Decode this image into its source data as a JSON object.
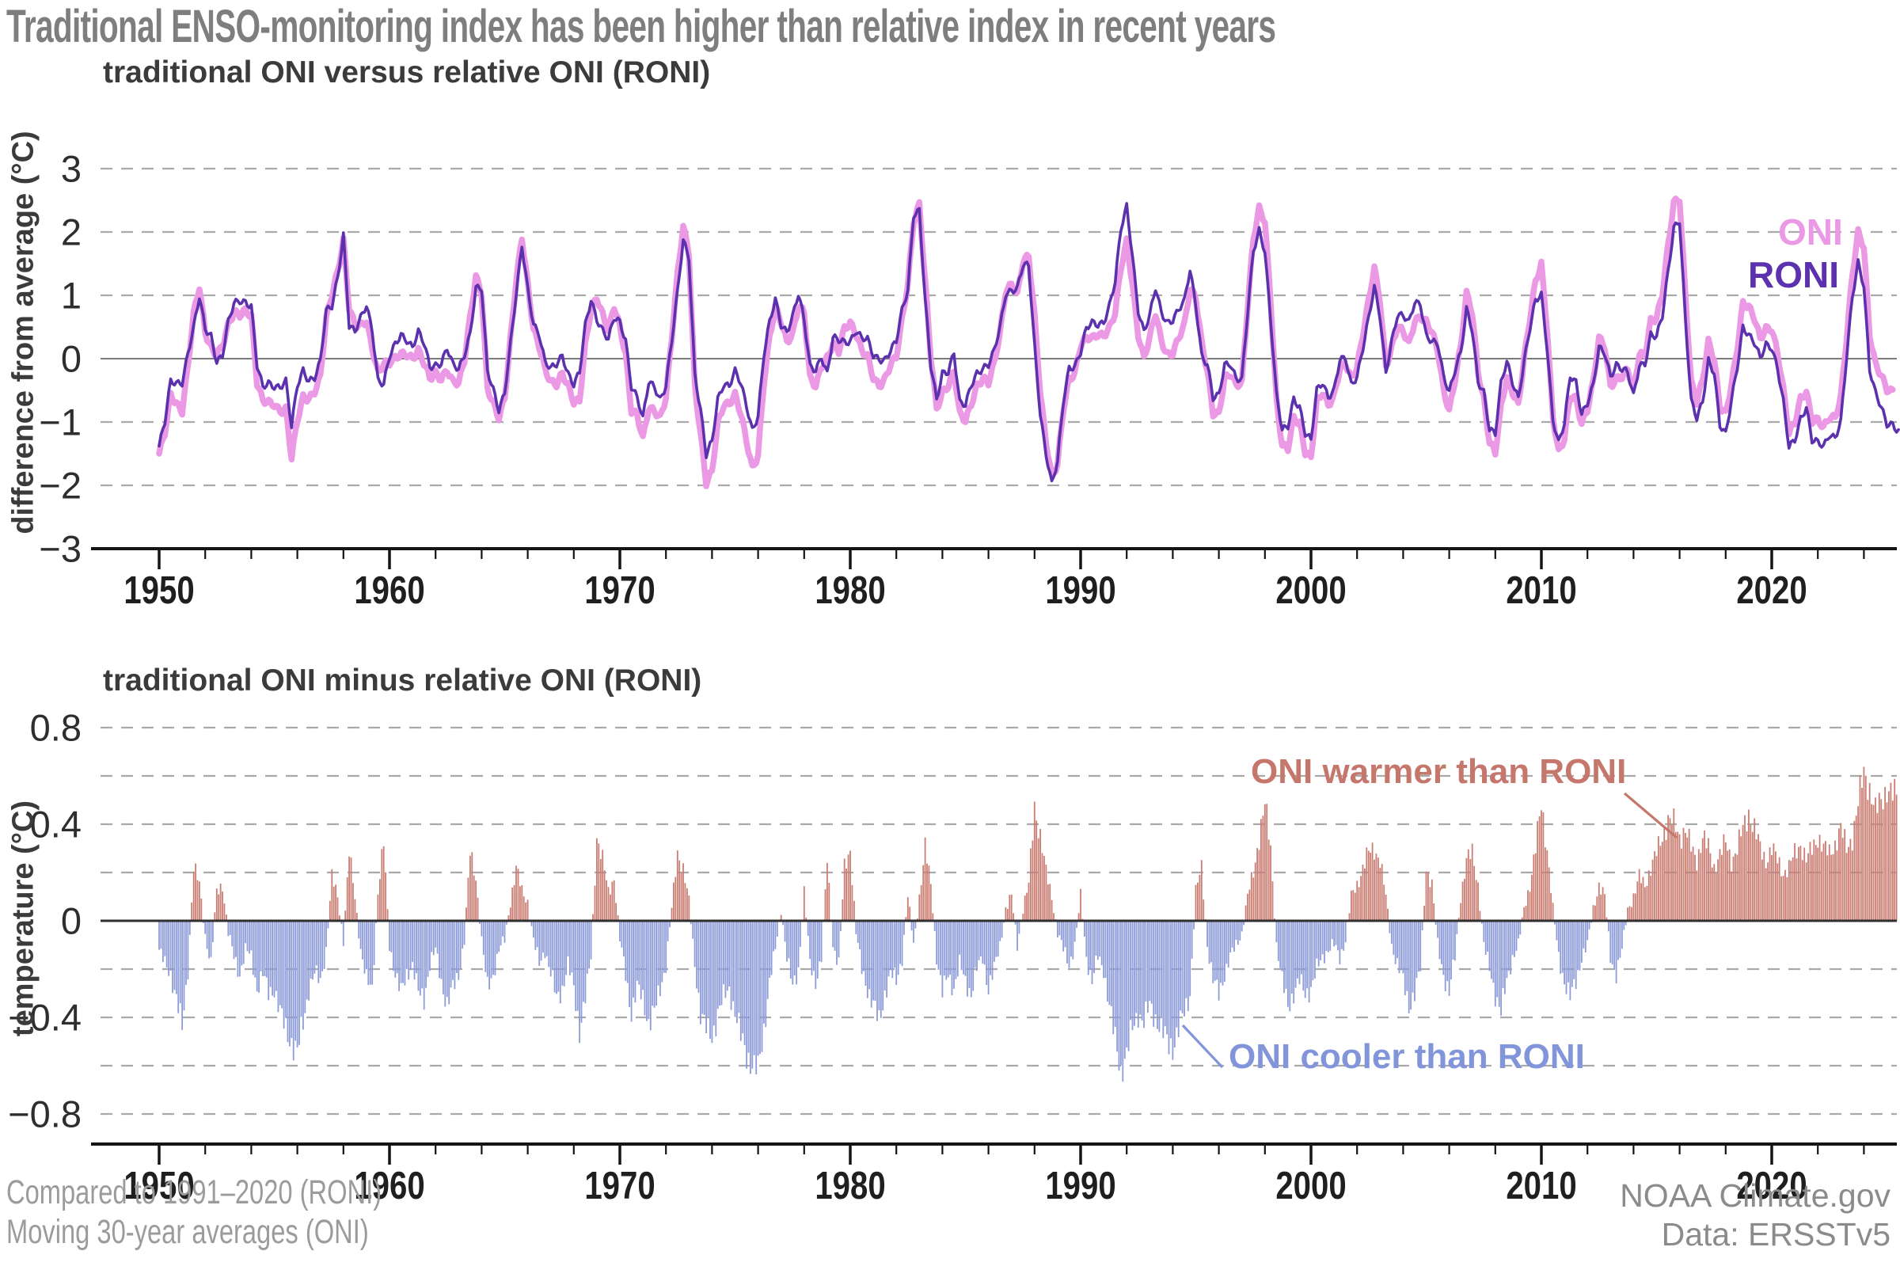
{
  "title": "Traditional ENSO-monitoring index has been higher than relative index in recent years",
  "footer": {
    "left_line1": "Compared to 1991–2020 (RONI)",
    "left_line2": "Moving 30-year averages (ONI)",
    "right_line1": "NOAA Climate.gov",
    "right_line2": "Data: ERSSTv5"
  },
  "colors": {
    "oni_pink": "#ec99e5",
    "roni_purple": "#5c31ad",
    "bar_warm": "#ca7e73",
    "bar_cool": "#8d9cd9",
    "annotation_warm": "#c5776c",
    "annotation_cool": "#8295da",
    "grid": "#a9a9a9",
    "zero_top": "#7a7a7a",
    "zero_bottom": "#2f2f2f",
    "axis": "#141414",
    "tick_label": "#1f1f1f",
    "y_label": "#2e2e2e",
    "title_gray": "#7e7e7e",
    "subtitle_dark": "#3b3b3b"
  },
  "chart_data": [
    {
      "type": "line",
      "title": "traditional ONI versus relative ONI (RONI)",
      "ylabel": "difference from average (°C)",
      "xlabel": "",
      "ylim": [
        -3,
        3
      ],
      "xlim": [
        1950,
        2025.5
      ],
      "grid": "dashed horizontal at integer values, solid line at 0",
      "legend_position": "right, stacked labels on plot",
      "x_start": 1950,
      "x_step_years": 0.25,
      "x_ticks": [
        1950,
        1960,
        1970,
        1980,
        1990,
        2000,
        2010,
        2020
      ],
      "y_tick_labels": [
        "3",
        "2",
        "1",
        "0",
        "−1",
        "−2",
        "−3"
      ],
      "y_tick_values": [
        3,
        2,
        1,
        0,
        -1,
        -2,
        -3
      ],
      "series": [
        {
          "name": "ONI",
          "color": "#ec99e5",
          "note": "quarterly decimal-year samples starting 1950.0, line ends mid-2025",
          "values": [
            -1.5,
            -1.2,
            -0.6,
            -0.7,
            -0.8,
            -0.1,
            0.7,
            1.1,
            0.4,
            0.2,
            0.1,
            0.2,
            0.5,
            0.7,
            0.7,
            0.8,
            0.7,
            -0.4,
            -0.7,
            -0.7,
            -0.7,
            -0.8,
            -0.8,
            -1.6,
            -1.0,
            -0.6,
            -0.6,
            -0.5,
            -0.3,
            0.6,
            1.0,
            1.4,
            1.9,
            0.8,
            0.5,
            0.5,
            0.6,
            0.2,
            -0.2,
            -0.1,
            -0.1,
            0.0,
            0.1,
            0.1,
            0.0,
            0.1,
            -0.1,
            -0.3,
            -0.2,
            -0.3,
            -0.2,
            -0.4,
            -0.4,
            0.0,
            0.7,
            1.3,
            1.0,
            -0.5,
            -0.7,
            -0.9,
            -0.6,
            0.3,
            1.2,
            1.9,
            1.2,
            0.5,
            0.2,
            -0.2,
            -0.4,
            -0.4,
            -0.2,
            -0.4,
            -0.7,
            -0.7,
            0.2,
            0.8,
            1.0,
            0.7,
            0.4,
            0.8,
            0.5,
            0.1,
            -0.8,
            -0.9,
            -1.3,
            -0.8,
            -0.8,
            -0.9,
            -0.6,
            0.3,
            1.3,
            2.1,
            1.7,
            -0.4,
            -1.2,
            -2.0,
            -1.8,
            -1.0,
            -0.7,
            -0.7,
            -0.6,
            -0.9,
            -1.3,
            -1.7,
            -1.5,
            -0.4,
            0.3,
            0.8,
            0.6,
            0.3,
            0.4,
            0.8,
            0.7,
            -0.3,
            -0.4,
            -0.1,
            0.0,
            0.2,
            0.1,
            0.5,
            0.6,
            0.4,
            0.1,
            0.0,
            -0.3,
            -0.4,
            -0.3,
            -0.1,
            0.0,
            0.6,
            1.2,
            2.2,
            2.45,
            1.2,
            0.0,
            -0.8,
            -0.5,
            -0.4,
            -0.2,
            -0.9,
            -1.0,
            -0.7,
            -0.4,
            -0.3,
            -0.4,
            -0.1,
            0.4,
            1.1,
            1.2,
            1.0,
            1.5,
            1.6,
            0.7,
            -0.5,
            -1.3,
            -1.9,
            -1.7,
            -0.8,
            -0.3,
            -0.2,
            0.2,
            0.3,
            0.3,
            0.4,
            0.4,
            0.5,
            0.7,
            1.4,
            1.85,
            1.2,
            0.4,
            0.0,
            0.3,
            0.7,
            0.3,
            0.1,
            0.1,
            0.3,
            0.5,
            1.1,
            1.0,
            0.3,
            -0.2,
            -0.9,
            -0.9,
            -0.3,
            -0.2,
            -0.4,
            -0.4,
            0.8,
            1.9,
            2.4,
            2.2,
            0.9,
            -0.7,
            -1.4,
            -1.4,
            -0.9,
            -1.0,
            -1.5,
            -1.6,
            -0.7,
            -0.5,
            -0.7,
            -0.6,
            -0.2,
            -0.1,
            -0.3,
            -0.1,
            0.4,
            0.9,
            1.4,
            0.9,
            -0.1,
            0.2,
            0.5,
            0.4,
            0.2,
            0.6,
            0.7,
            0.6,
            0.4,
            0.1,
            -0.5,
            -0.8,
            -0.3,
            0.2,
            1.0,
            0.7,
            -0.2,
            -0.6,
            -1.3,
            -1.5,
            -0.8,
            -0.3,
            -0.5,
            -0.7,
            0.0,
            0.6,
            1.2,
            1.5,
            0.5,
            -0.9,
            -1.5,
            -1.3,
            -0.6,
            -0.6,
            -1.0,
            -0.8,
            -0.4,
            0.3,
            0.2,
            -0.4,
            -0.3,
            -0.3,
            -0.2,
            -0.5,
            0.1,
            0.1,
            0.6,
            0.6,
            1.0,
            1.8,
            2.5,
            2.55,
            1.0,
            -0.4,
            -0.7,
            -0.3,
            0.3,
            0.0,
            -0.8,
            -0.9,
            -0.4,
            0.2,
            0.9,
            0.8,
            0.6,
            0.3,
            0.5,
            0.5,
            0.1,
            -0.5,
            -1.2,
            -1.0,
            -0.6,
            -0.5,
            -1.0,
            -1.0,
            -1.1,
            -0.9,
            -0.9,
            -0.6,
            0.3,
            1.3,
            2.0,
            1.8,
            0.4,
            -0.1,
            -0.3,
            -0.5,
            -0.5,
            -0.6
          ],
          "end_index_drawn": 301
        },
        {
          "name": "RONI",
          "color": "#5c31ad",
          "derivation": "RONI = ONI value minus the difference series of chart 2 (drawn to mid-2025)"
        }
      ]
    },
    {
      "type": "bar",
      "title": "traditional ONI minus relative ONI (RONI)",
      "ylabel": "temperature (°C)",
      "xlabel": "",
      "ylim": [
        -0.8,
        0.8
      ],
      "xlim": [
        1950,
        2025.5
      ],
      "grid": "dashed horizontal every 0.2, solid dark line at 0",
      "positive_label": "ONI warmer than RONI",
      "positive_color": "#ca7e73",
      "negative_label": "ONI cooler than RONI",
      "negative_color": "#8d9cd9",
      "x_start": 1950,
      "x_step_years": 0.25,
      "x_ticks": [
        1950,
        1960,
        1970,
        1980,
        1990,
        2000,
        2010,
        2020
      ],
      "y_tick_labels": [
        "0.8",
        "0.4",
        "0",
        "−0.4",
        "−0.8"
      ],
      "y_tick_values": [
        0.8,
        0.4,
        0,
        -0.4,
        -0.8
      ],
      "values": [
        -0.12,
        -0.18,
        -0.22,
        -0.32,
        -0.45,
        -0.2,
        0.22,
        0.15,
        -0.06,
        -0.18,
        0.12,
        0.15,
        -0.05,
        -0.15,
        -0.22,
        -0.12,
        -0.15,
        -0.28,
        -0.22,
        -0.3,
        -0.28,
        -0.38,
        -0.45,
        -0.5,
        -0.55,
        -0.42,
        -0.28,
        -0.22,
        -0.25,
        -0.12,
        0.18,
        0.1,
        -0.08,
        0.28,
        0.1,
        -0.12,
        -0.25,
        -0.28,
        0.12,
        0.32,
        -0.1,
        -0.22,
        -0.3,
        -0.22,
        -0.18,
        -0.3,
        -0.32,
        -0.18,
        -0.12,
        -0.25,
        -0.35,
        -0.28,
        -0.22,
        -0.08,
        0.28,
        0.18,
        -0.08,
        -0.28,
        -0.22,
        -0.12,
        -0.08,
        0.08,
        0.22,
        0.12,
        0.08,
        -0.08,
        -0.18,
        -0.12,
        -0.22,
        -0.32,
        -0.28,
        -0.18,
        -0.28,
        -0.45,
        -0.32,
        -0.15,
        0.35,
        0.25,
        0.12,
        0.18,
        -0.08,
        -0.22,
        -0.38,
        -0.28,
        -0.32,
        -0.42,
        -0.38,
        -0.28,
        -0.18,
        0.05,
        0.28,
        0.22,
        0.08,
        -0.18,
        -0.38,
        -0.45,
        -0.48,
        -0.38,
        -0.32,
        -0.28,
        -0.38,
        -0.48,
        -0.55,
        -0.6,
        -0.62,
        -0.45,
        -0.25,
        -0.12,
        0.05,
        -0.15,
        -0.28,
        -0.2,
        0.12,
        -0.18,
        -0.25,
        -0.15,
        0.25,
        -0.1,
        -0.18,
        0.22,
        0.3,
        -0.05,
        -0.2,
        -0.28,
        -0.35,
        -0.42,
        -0.3,
        -0.22,
        -0.25,
        -0.15,
        0.1,
        -0.1,
        0.1,
        0.3,
        0.15,
        -0.15,
        -0.3,
        -0.22,
        -0.28,
        -0.18,
        -0.25,
        -0.3,
        -0.2,
        -0.15,
        -0.28,
        -0.2,
        -0.1,
        0.05,
        0.1,
        -0.1,
        0.05,
        0.15,
        0.48,
        0.35,
        0.2,
        0.1,
        -0.05,
        -0.12,
        -0.18,
        -0.1,
        0.1,
        -0.15,
        -0.25,
        -0.15,
        -0.2,
        -0.35,
        -0.5,
        -0.62,
        -0.55,
        -0.45,
        -0.38,
        -0.42,
        -0.35,
        -0.4,
        -0.45,
        -0.5,
        -0.52,
        -0.45,
        -0.38,
        -0.3,
        0.12,
        0.22,
        -0.1,
        -0.25,
        -0.3,
        -0.22,
        -0.15,
        -0.1,
        -0.05,
        0.1,
        0.2,
        0.35,
        0.48,
        0.3,
        -0.1,
        -0.25,
        -0.35,
        -0.3,
        -0.25,
        -0.3,
        -0.28,
        -0.2,
        -0.15,
        -0.12,
        -0.1,
        -0.15,
        -0.08,
        0.1,
        0.15,
        0.22,
        0.28,
        0.3,
        0.25,
        0.1,
        -0.1,
        -0.18,
        -0.25,
        -0.35,
        -0.3,
        -0.2,
        0.22,
        0.15,
        -0.1,
        -0.22,
        -0.3,
        -0.15,
        0.1,
        0.25,
        0.28,
        0.15,
        -0.1,
        -0.2,
        -0.3,
        -0.38,
        -0.25,
        -0.15,
        -0.1,
        0.05,
        0.15,
        0.3,
        0.48,
        0.3,
        0.05,
        -0.15,
        -0.25,
        -0.32,
        -0.25,
        -0.15,
        -0.1,
        0.05,
        0.15,
        0.1,
        -0.15,
        -0.22,
        -0.12,
        0.05,
        0.1,
        0.18,
        0.15,
        0.22,
        0.28,
        0.35,
        0.42,
        0.4,
        0.35,
        0.38,
        0.3,
        0.25,
        0.35,
        0.3,
        0.22,
        0.28,
        0.32,
        0.25,
        0.3,
        0.38,
        0.45,
        0.38,
        0.3,
        0.25,
        0.3,
        0.25,
        0.2,
        0.22,
        0.28,
        0.32,
        0.25,
        0.3,
        0.35,
        0.3,
        0.28,
        0.32,
        0.38,
        0.3,
        0.35,
        0.48,
        0.62,
        0.55,
        0.45,
        0.5,
        0.55,
        0.52,
        0.52
      ]
    }
  ]
}
